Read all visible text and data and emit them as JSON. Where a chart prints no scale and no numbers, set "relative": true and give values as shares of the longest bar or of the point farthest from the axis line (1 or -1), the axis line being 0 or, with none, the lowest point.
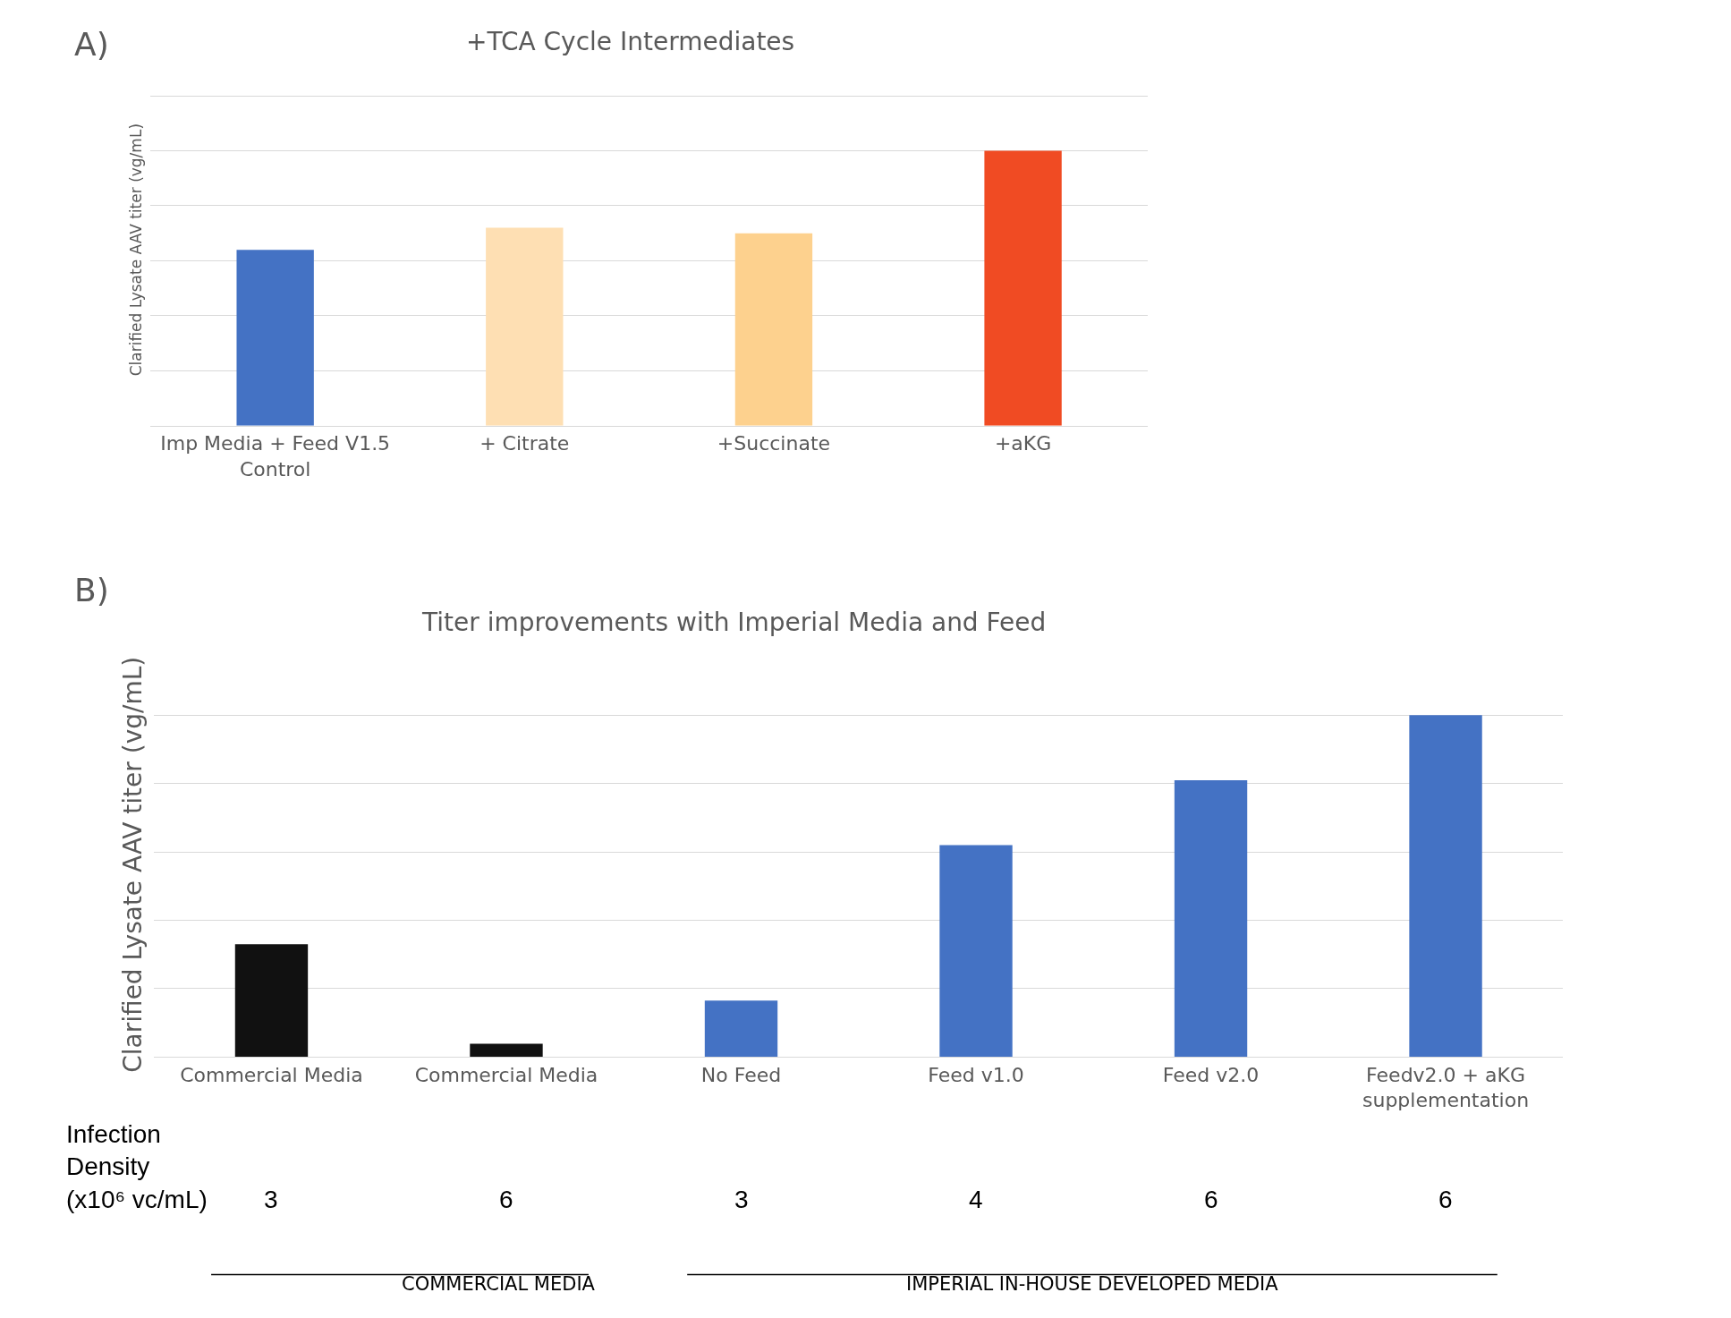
{
  "chart_data": [
    {
      "type": "bar",
      "title": "+TCA Cycle Intermediates",
      "ylabel": "Clarified Lysate AAV titer (vg/mL)",
      "relative": true,
      "grid": "y",
      "legend": false,
      "categories": [
        "Imp Media + Feed V1.5 Control",
        "+ Citrate",
        "+Succinate",
        "+aKG"
      ],
      "values": [
        0.64,
        0.72,
        0.7,
        1
      ],
      "colors": [
        "#4472c4",
        "#fedfb3",
        "#fdd18e",
        "#f04b23"
      ],
      "annotations": [
        "A)"
      ]
    },
    {
      "type": "bar",
      "title": "Titer improvements with Imperial Media and Feed",
      "ylabel": "Clarified Lysate AAV titer (vg/mL)",
      "relative": true,
      "grid": "y",
      "legend": false,
      "categories": [
        "Commercial Media",
        "Commercial Media",
        "No Feed",
        "Feed v1.0",
        "Feed v2.0",
        "Feedv2.0 + aKG supplementation"
      ],
      "values": [
        0.33,
        0.039,
        0.165,
        0.62,
        0.81,
        1
      ],
      "colors": [
        "#111111",
        "#111111",
        "#4472c4",
        "#4472c4",
        "#4472c4",
        "#4472c4"
      ],
      "annotations": [
        "B)",
        "Infection Density (x10⁶ vc/mL)",
        "3",
        "6",
        "3",
        "4",
        "6",
        "6",
        "COMMERCIAL MEDIA",
        "IMPERIAL IN-HOUSE DEVELOPED MEDIA"
      ]
    }
  ]
}
